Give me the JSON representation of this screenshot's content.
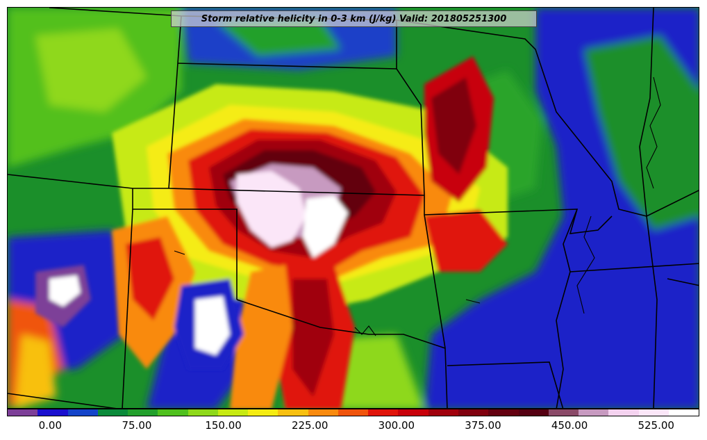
{
  "title": "Storm relative helicity in 0-3 km (J/kg) Valid: 201805251300",
  "colorbar": {
    "colors": [
      "#7d3f98",
      "#1a0fcf",
      "#1444c9",
      "#0a8a3a",
      "#22a02c",
      "#4fc01e",
      "#8ed81a",
      "#c7ea12",
      "#f5ec12",
      "#f8c010",
      "#f98a0e",
      "#f0540c",
      "#e0140a",
      "#c8000a",
      "#a0000c",
      "#80000e",
      "#640010",
      "#550012",
      "#8a4a68",
      "#c79ac0",
      "#f4d2ef",
      "#fbe6f8",
      "#ffffff"
    ],
    "ticks": [
      {
        "value": 0,
        "label": "0.00"
      },
      {
        "value": 75,
        "label": "75.00"
      },
      {
        "value": 150,
        "label": "150.00"
      },
      {
        "value": 225,
        "label": "225.00"
      },
      {
        "value": 300,
        "label": "300.00"
      },
      {
        "value": 375,
        "label": "375.00"
      },
      {
        "value": 450,
        "label": "450.00"
      },
      {
        "value": 525,
        "label": "525.00"
      }
    ],
    "range": [
      -37.5,
      562.5
    ]
  }
}
